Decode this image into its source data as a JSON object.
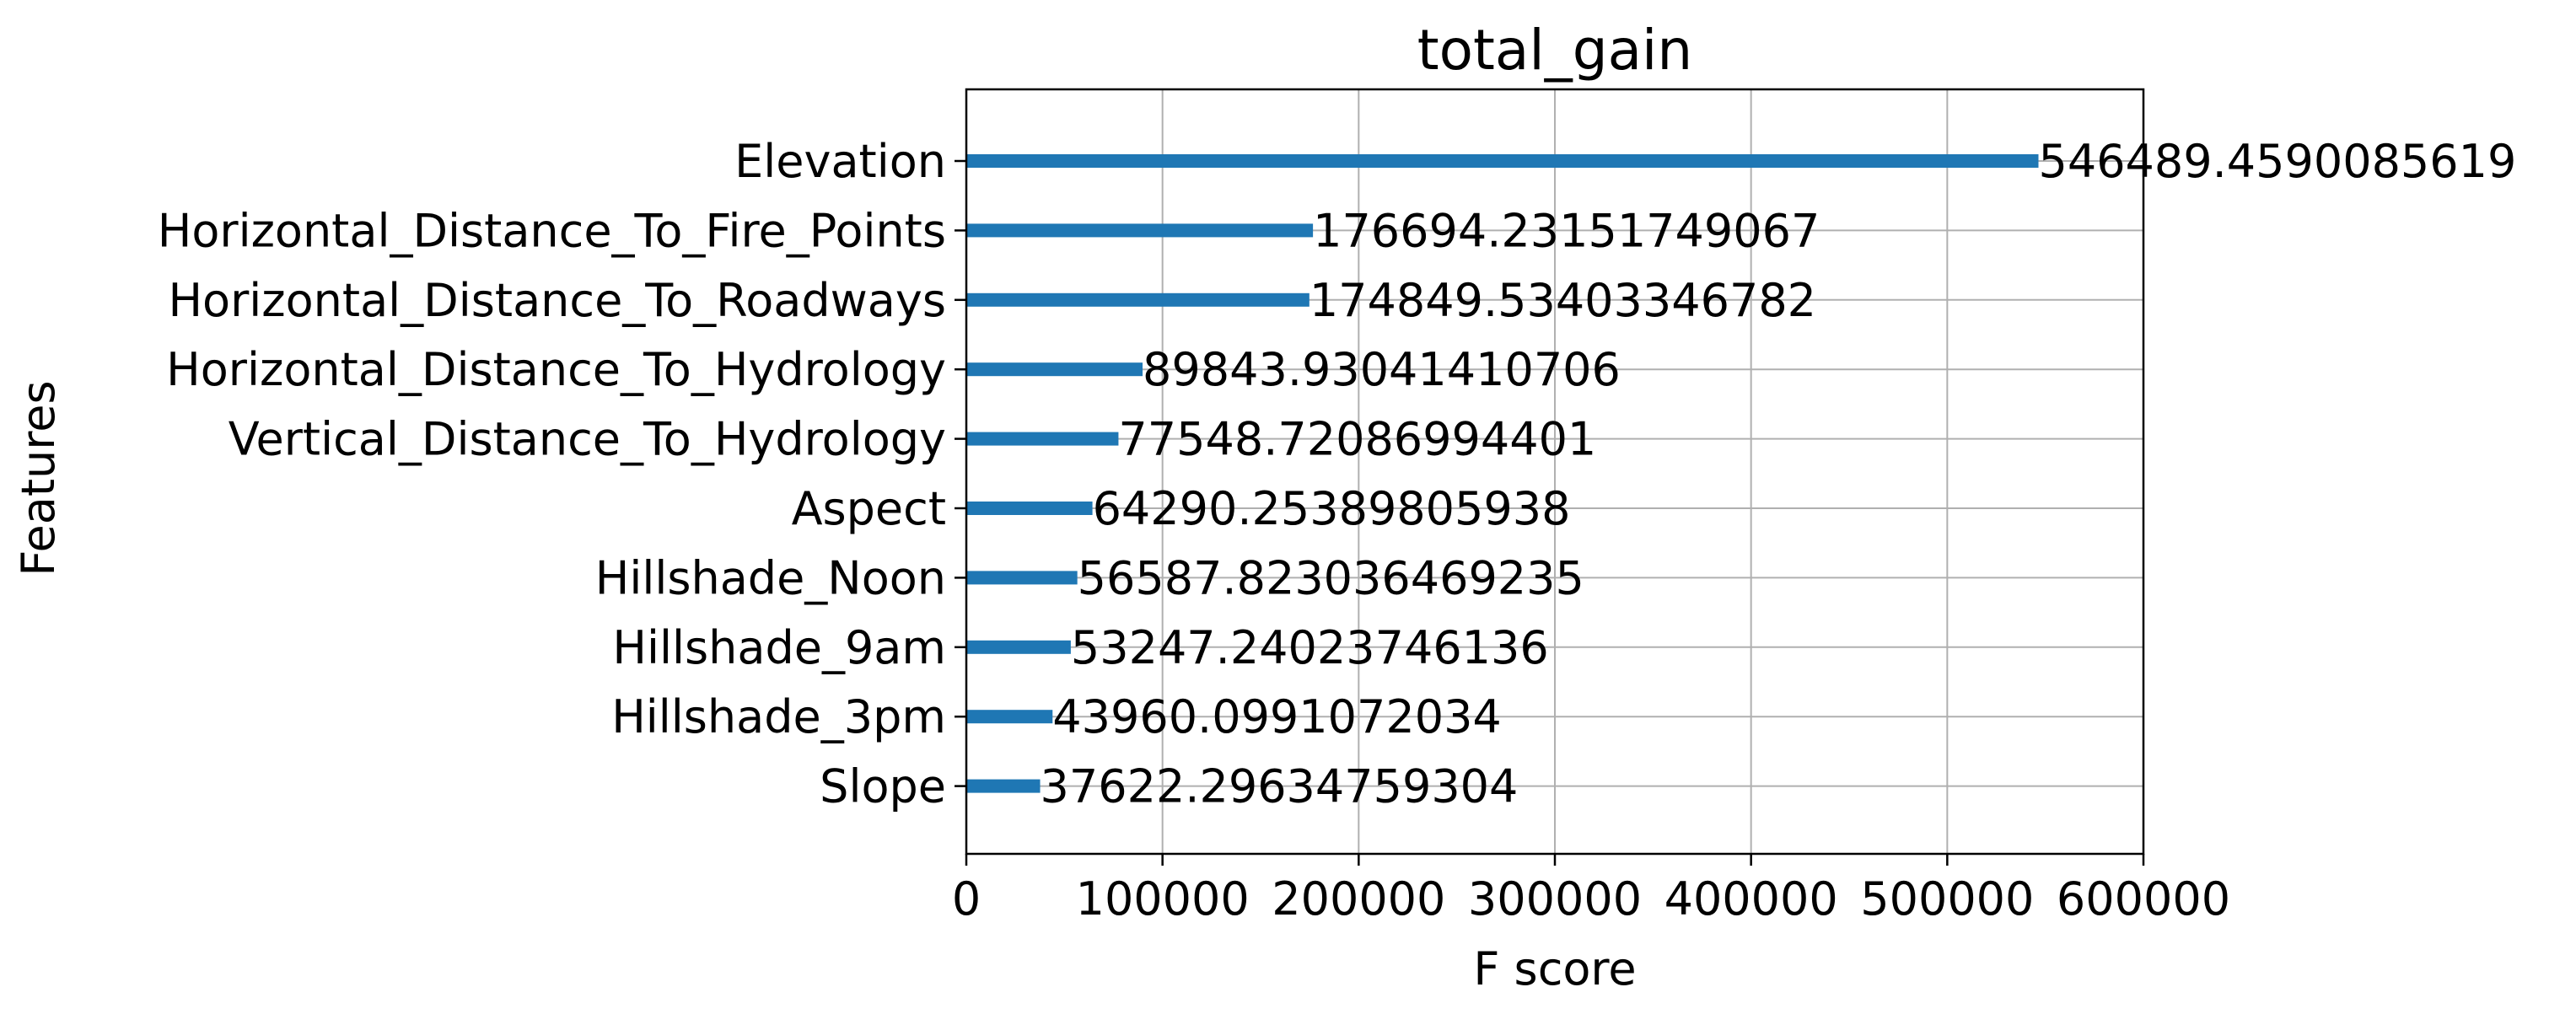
{
  "chart_data": {
    "type": "bar",
    "orientation": "horizontal",
    "title": "total_gain",
    "xlabel": "F score",
    "ylabel": "Features",
    "xlim": [
      0,
      600000
    ],
    "xticks": [
      0,
      100000,
      200000,
      300000,
      400000,
      500000,
      600000
    ],
    "xtick_labels": [
      "0",
      "100000",
      "200000",
      "300000",
      "400000",
      "500000",
      "600000"
    ],
    "grid": true,
    "bar_color": "#1f77b4",
    "categories": [
      "Elevation",
      "Horizontal_Distance_To_Fire_Points",
      "Horizontal_Distance_To_Roadways",
      "Horizontal_Distance_To_Hydrology",
      "Vertical_Distance_To_Hydrology",
      "Aspect",
      "Hillshade_Noon",
      "Hillshade_9am",
      "Hillshade_3pm",
      "Slope"
    ],
    "values": [
      546489.4590085619,
      176694.23151749067,
      174849.53403346782,
      89843.93041410706,
      77548.72086994401,
      64290.25389805938,
      56587.823036469235,
      53247.24023746136,
      43960.0991072034,
      37622.29634759304
    ],
    "value_labels": [
      "546489.4590085619",
      "176694.23151749067",
      "174849.53403346782",
      "89843.93041410706",
      "77548.72086994401",
      "64290.25389805938",
      "56587.823036469235",
      "53247.24023746136",
      "43960.0991072034",
      "37622.29634759304"
    ]
  }
}
